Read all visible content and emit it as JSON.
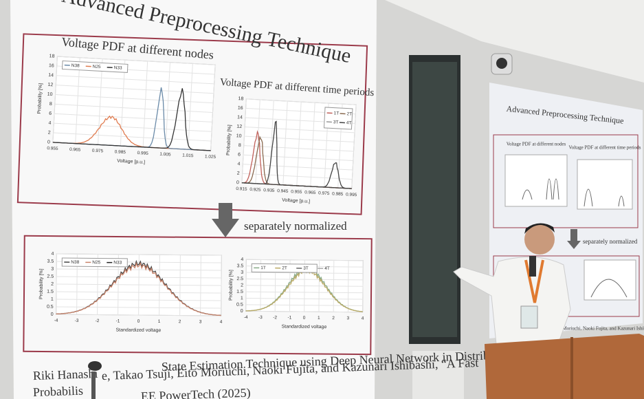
{
  "main_slide": {
    "title": "Advanced Preprocessing Technique",
    "top_left_title": "Voltage PDF at different nodes",
    "top_right_title": "Voltage PDF at different time periods",
    "arrow_label": "separately normalized",
    "panels": [
      {
        "y_label": "Probability [%]",
        "x_label": "Voltage [p.u.]",
        "y_ticks": [
          "0",
          "2",
          "4",
          "6",
          "8",
          "10",
          "12",
          "14",
          "16",
          "18"
        ],
        "x_ticks": [
          "0.955",
          "0.965",
          "0.975",
          "0.985",
          "0.995",
          "1.005",
          "1.015",
          "1.025"
        ],
        "legend": [
          "N38",
          "N25",
          "N33"
        ]
      },
      {
        "y_label": "Probability [%]",
        "x_label": "Voltage [p.u.]",
        "y_ticks": [
          "0",
          "2",
          "4",
          "6",
          "8",
          "10",
          "12",
          "14",
          "16",
          "18"
        ],
        "x_ticks": [
          "0.915",
          "0.925",
          "0.935",
          "0.945",
          "0.955",
          "0.965",
          "0.975",
          "0.985",
          "0.995"
        ],
        "legend": [
          "1T",
          "2T",
          "3T",
          "4T"
        ]
      },
      {
        "y_label": "Probability [%]",
        "x_label": "Standardized voltage",
        "y_ticks": [
          "0",
          "0.5",
          "1",
          "1.5",
          "2",
          "2.5",
          "3",
          "3.5",
          "4"
        ],
        "x_ticks": [
          "-4",
          "-3",
          "-2",
          "-1",
          "0",
          "1",
          "2",
          "3",
          "4"
        ],
        "legend": [
          "N38",
          "N25",
          "N33"
        ]
      },
      {
        "y_label": "Probability [%]",
        "x_label": "Standardized voltage",
        "y_ticks": [
          "0",
          "0.5",
          "1",
          "1.5",
          "2",
          "2.5",
          "3",
          "3.5",
          "4"
        ],
        "x_ticks": [
          "-4",
          "-3",
          "-2",
          "-1",
          "0",
          "1",
          "2",
          "3",
          "4"
        ],
        "legend": [
          "1T",
          "2T",
          "3T",
          "4T"
        ]
      }
    ],
    "citation": [
      "Riki Hanashi",
      "e, Takao Tsuji, Eito Moriuchi, Naoki Fujita, and Kazunari Ishibashi, “A Fast",
      "Probabilis",
      "State Estimation Technique using Deep Neural Network in Distribution",
      "EE PowerTech (2025)"
    ]
  },
  "side_slide": {
    "title": "Advanced Preprocessing Technique",
    "top_left_title": "Voltage PDF at different nodes",
    "top_right_title": "Voltage PDF at different time periods",
    "arrow_label": "separately normalized",
    "citation": "Eito Moriuchi, Naoki Fujita, and Kazunari Ishibashi, “A Fast"
  }
}
